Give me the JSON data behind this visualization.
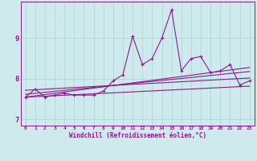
{
  "xlabel": "Windchill (Refroidissement éolien,°C)",
  "bg_color": "#ceeaed",
  "line_color": "#8b1a8b",
  "grid_color": "#a8d4d8",
  "xlim": [
    -0.5,
    23.5
  ],
  "ylim": [
    6.85,
    9.9
  ],
  "xticks": [
    0,
    1,
    2,
    3,
    4,
    5,
    6,
    7,
    8,
    9,
    10,
    11,
    12,
    13,
    14,
    15,
    16,
    17,
    18,
    19,
    20,
    21,
    22,
    23
  ],
  "yticks": [
    7,
    8,
    9
  ],
  "main_data_x": [
    0,
    1,
    2,
    3,
    4,
    5,
    6,
    7,
    8,
    9,
    10,
    11,
    12,
    13,
    14,
    15,
    16,
    17,
    18,
    19,
    20,
    21,
    22,
    23
  ],
  "main_data_y": [
    7.55,
    7.75,
    7.55,
    7.6,
    7.65,
    7.6,
    7.6,
    7.6,
    7.7,
    7.95,
    8.1,
    9.05,
    8.35,
    8.5,
    9.0,
    9.7,
    8.2,
    8.5,
    8.55,
    8.15,
    8.2,
    8.35,
    7.85,
    7.95
  ],
  "trend1_x": [
    0,
    23
  ],
  "trend1_y": [
    7.72,
    8.02
  ],
  "trend2_x": [
    0,
    23
  ],
  "trend2_y": [
    7.62,
    8.18
  ],
  "trend3_x": [
    0,
    23
  ],
  "trend3_y": [
    7.55,
    8.28
  ],
  "trend4_x": [
    0,
    23
  ],
  "trend4_y": [
    7.55,
    7.82
  ]
}
